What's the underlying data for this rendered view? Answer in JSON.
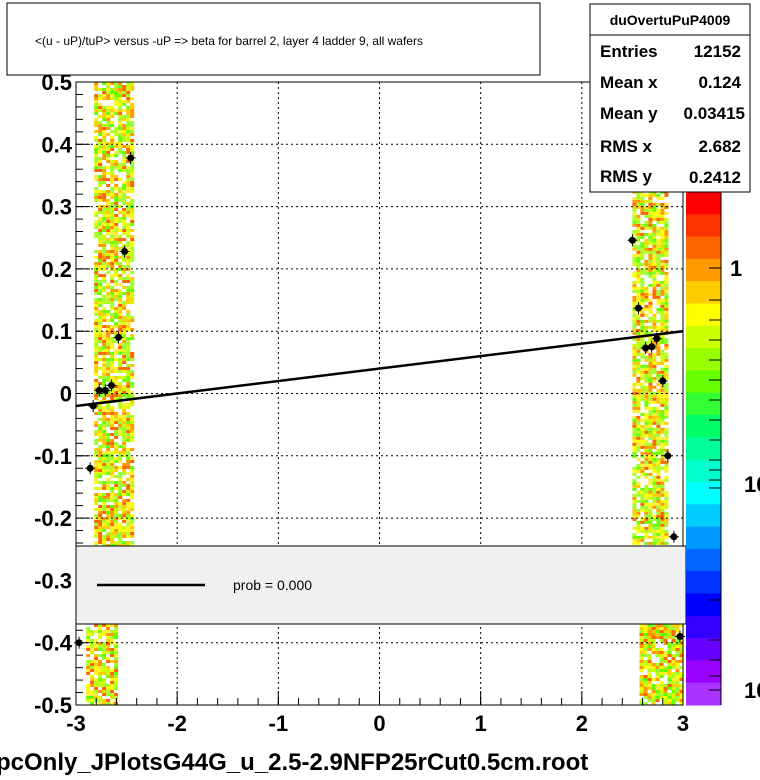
{
  "title": "<(u - uP)/tuP> versus  -uP => beta for barrel 2, layer 4 ladder 9, all wafers",
  "footer": "pcOnly_JPlotsG44G_u_2.5-2.9NFP25rCut0.5cm.root",
  "stats": {
    "name": "duOvertuPuP4009",
    "rows": [
      {
        "label": "Entries",
        "value": "12152"
      },
      {
        "label": "Mean x",
        "value": "0.124"
      },
      {
        "label": "Mean y",
        "value": "0.03415"
      },
      {
        "label": "RMS x",
        "value": "2.682"
      },
      {
        "label": "RMS y",
        "value": "0.2412"
      }
    ]
  },
  "legend": {
    "entry": "prob = 0.000"
  },
  "colorbar": {
    "labels": [
      "1",
      "10",
      "10"
    ]
  },
  "chart_data": {
    "type": "scatter",
    "title": "<(u - uP)/tuP> versus  -uP => beta for barrel 2, layer 4 ladder 9, all wafers",
    "xlim": [
      -3,
      3
    ],
    "ylim": [
      -0.5,
      0.5
    ],
    "x_ticks": [
      "-3",
      "-2",
      "-1",
      "0",
      "1",
      "2",
      "3"
    ],
    "y_ticks": [
      "-0.5",
      "-0.4",
      "-0.3",
      "-0.2",
      "-0.1",
      "0",
      "0.1",
      "0.2",
      "0.3",
      "0.4",
      "0.5"
    ],
    "grid": true,
    "heatmap_bands": [
      {
        "x_min": -2.82,
        "x_max": -2.45,
        "y_min": -0.25,
        "y_max": 0.5
      },
      {
        "x_min": -2.9,
        "x_max": -2.6,
        "y_min": -0.5,
        "y_max": -0.37
      },
      {
        "x_min": 2.5,
        "x_max": 2.82,
        "y_min": -0.24,
        "y_max": 0.33
      },
      {
        "x_min": 2.57,
        "x_max": 2.97,
        "y_min": -0.5,
        "y_max": -0.37
      }
    ],
    "points": [
      {
        "x": -2.97,
        "y": -0.4
      },
      {
        "x": -2.86,
        "y": -0.12
      },
      {
        "x": -2.83,
        "y": -0.02
      },
      {
        "x": -2.77,
        "y": 0.005
      },
      {
        "x": -2.71,
        "y": 0.005
      },
      {
        "x": -2.65,
        "y": 0.013
      },
      {
        "x": -2.58,
        "y": 0.09
      },
      {
        "x": -2.52,
        "y": 0.228
      },
      {
        "x": -2.46,
        "y": 0.378
      },
      {
        "x": 2.5,
        "y": 0.246
      },
      {
        "x": 2.56,
        "y": 0.137
      },
      {
        "x": 2.63,
        "y": 0.073
      },
      {
        "x": 2.69,
        "y": 0.075
      },
      {
        "x": 2.74,
        "y": 0.088
      },
      {
        "x": 2.8,
        "y": 0.02
      },
      {
        "x": 2.85,
        "y": -0.1
      },
      {
        "x": 2.91,
        "y": -0.23
      },
      {
        "x": 2.97,
        "y": -0.39
      }
    ],
    "fit_line": {
      "x": [
        -3,
        3
      ],
      "y": [
        -0.02,
        0.1
      ]
    }
  }
}
